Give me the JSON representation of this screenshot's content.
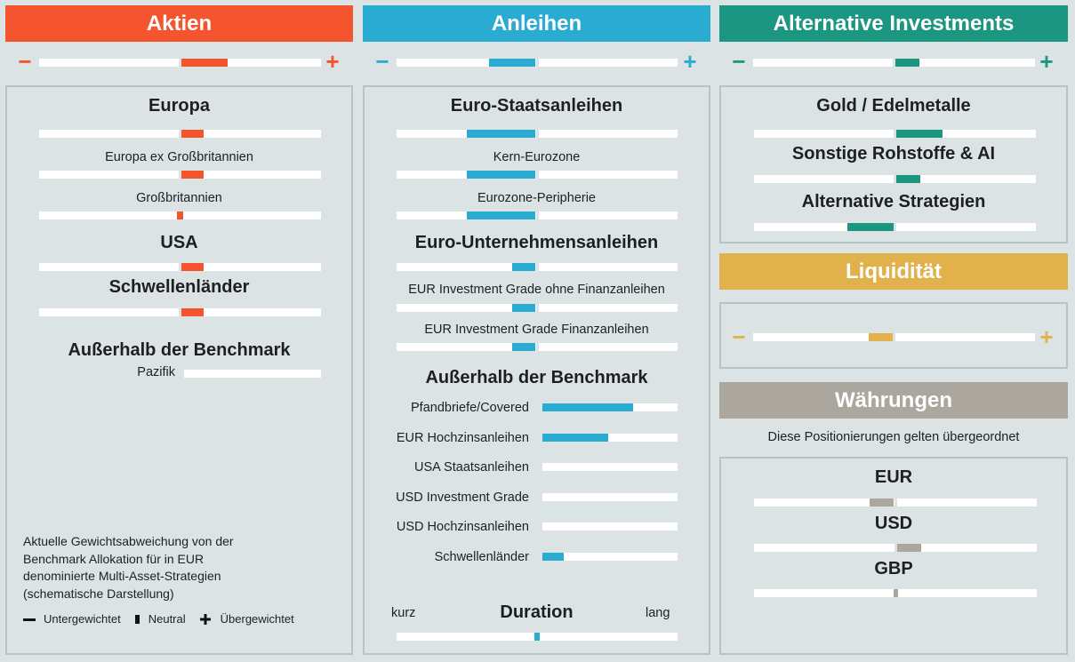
{
  "colors": {
    "aktien": "#f5552e",
    "anleihen": "#2aabd1",
    "alternative": "#1b9781",
    "liquiditaet": "#e1b24c",
    "waehrungen": "#aba69e"
  },
  "headers": {
    "aktien": "Aktien",
    "anleihen": "Anleihen",
    "alternative": "Alternative Investments",
    "liquiditaet": "Liquidität",
    "waehrungen": "Währungen"
  },
  "signs": {
    "minus": "−",
    "plus": "+"
  },
  "chart_data": {
    "type": "bar",
    "scale": {
      "min": -1,
      "max": 1,
      "neutral": 0
    },
    "groups": [
      {
        "name": "Aktien",
        "summary": 0.33,
        "items": [
          {
            "label": "Europa",
            "value": 0.16
          },
          {
            "label": "Europa ex Großbritannien",
            "value": 0.16
          },
          {
            "label": "Großbritannien",
            "value": 0.04
          },
          {
            "label": "USA",
            "value": 0.16
          },
          {
            "label": "Schwellenländer",
            "value": 0.16
          }
        ],
        "outside_benchmark": {
          "title": "Außerhalb der Benchmark",
          "items": [
            {
              "label": "Pazifik",
              "value": 0
            }
          ]
        }
      },
      {
        "name": "Anleihen",
        "summary": -0.33,
        "items": [
          {
            "label": "Euro-Staatsanleihen",
            "value": -0.49
          },
          {
            "label": "Kern-Eurozone",
            "value": -0.49
          },
          {
            "label": "Eurozone-Peripherie",
            "value": -0.49
          },
          {
            "label": "Euro-Unternehmensanleihen",
            "value": -0.17
          },
          {
            "label": "EUR Investment Grade ohne Finanzanleihen",
            "value": -0.17
          },
          {
            "label": "EUR Investment Grade Finanzanleihen",
            "value": -0.17
          }
        ],
        "outside_benchmark": {
          "title": "Außerhalb der Benchmark",
          "items": [
            {
              "label": "Pfandbriefe/Covered",
              "value": 0.67
            },
            {
              "label": "EUR Hochzinsanleihen",
              "value": 0.49
            },
            {
              "label": "USA Staatsanleihen",
              "value": 0
            },
            {
              "label": "USD Investment Grade",
              "value": 0
            },
            {
              "label": "USD Hochzinsanleihen",
              "value": 0
            },
            {
              "label": "Schwellenländer",
              "value": 0.16
            }
          ]
        }
      },
      {
        "name": "Alternative Investments",
        "summary": 0.17,
        "items": [
          {
            "label": "Gold / Edelmetalle",
            "value": 0.33
          },
          {
            "label": "Sonstige Rohstoffe & AI",
            "value": 0.17
          },
          {
            "label": "Alternative Strategien",
            "value": -0.33
          }
        ]
      },
      {
        "name": "Liquidität",
        "summary": -0.17
      },
      {
        "name": "Währungen",
        "items": [
          {
            "label": "EUR",
            "value": -0.17
          },
          {
            "label": "USD",
            "value": 0.17
          },
          {
            "label": "GBP",
            "value": 0.02
          }
        ]
      }
    ],
    "duration": {
      "title": "Duration",
      "left": "kurz",
      "right": "lang",
      "value": -0.04
    }
  },
  "waehrungen_note": "Diese Positionierungen gelten übergeordnet",
  "footnote": [
    "Aktuelle Gewichtsabweichung von der",
    "Benchmark Allokation für in EUR",
    "denominierte Multi-Asset-Strategien",
    "(schematische Darstellung)"
  ],
  "legend": {
    "under": "Untergewichtet",
    "neutral": "Neutral",
    "over": "Übergewichtet"
  }
}
